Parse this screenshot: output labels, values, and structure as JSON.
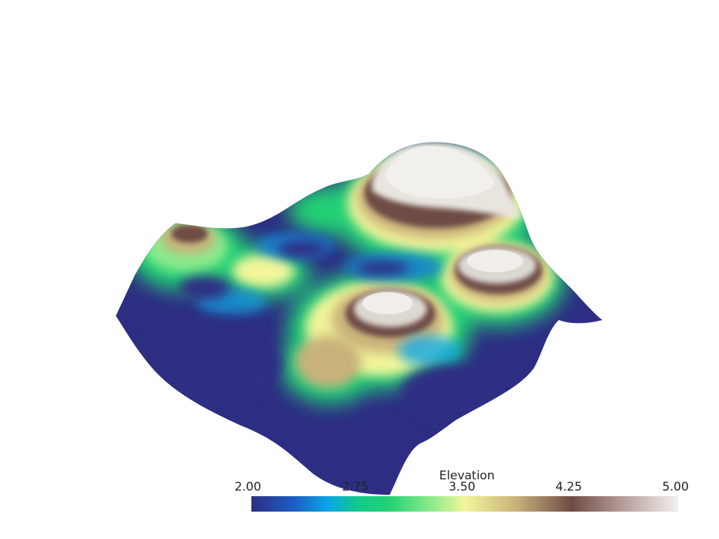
{
  "scene": {
    "surface": "3D elevation terrain surface",
    "colormap": "gist_earth-like (blue → green → yellow → brown → white)",
    "background": "#ffffff"
  },
  "scalar_bar": {
    "title": "Elevation",
    "ticks": [
      "2.00",
      "2.75",
      "3.50",
      "4.25",
      "5.00"
    ],
    "range": [
      2.0,
      5.0
    ],
    "colors": {
      "low": "#2d2e83",
      "blue": "#1a7fd4",
      "cyan": "#0aa6e6",
      "green": "#21d074",
      "light_green": "#8bea8c",
      "yellow": "#f2f59a",
      "tan": "#c9b27a",
      "brown": "#6e4c44",
      "mauve": "#b79d99",
      "high": "#f3f1ee"
    }
  }
}
